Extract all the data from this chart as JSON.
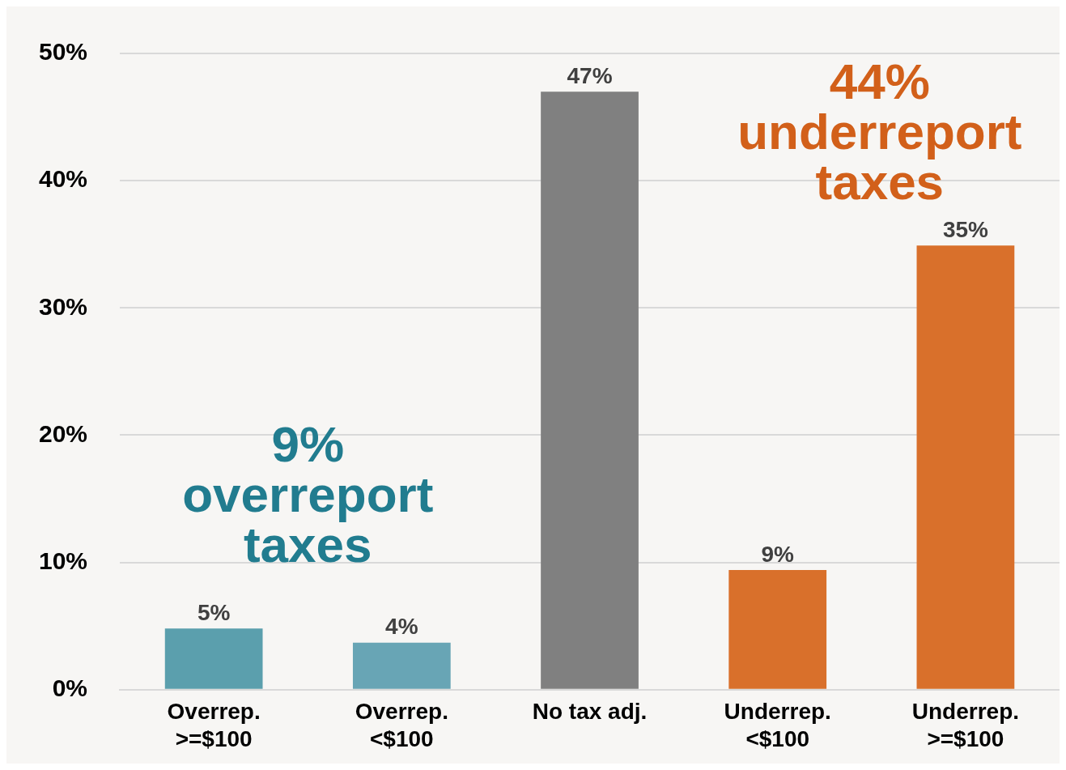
{
  "chart_data": {
    "type": "bar",
    "categories": [
      "Overrep.\n>=$100",
      "Overrep.\n<$100",
      "No tax adj.",
      "Underrep.\n<$100",
      "Underrep.\n>=$100"
    ],
    "values": [
      4.8,
      3.7,
      47.0,
      9.4,
      34.9
    ],
    "value_labels": [
      "5%",
      "4%",
      "47%",
      "9%",
      "35%"
    ],
    "colors": [
      "#5b9fad",
      "#68a5b5",
      "#808080",
      "#d9702b",
      "#d9702b"
    ],
    "ylim": [
      0,
      50
    ],
    "yticks": [
      {
        "value": 0,
        "label": "0%"
      },
      {
        "value": 10,
        "label": "10%"
      },
      {
        "value": 20,
        "label": "20%"
      },
      {
        "value": 30,
        "label": "30%"
      },
      {
        "value": 40,
        "label": "40%"
      },
      {
        "value": 50,
        "label": "50%"
      }
    ],
    "grid": "y",
    "legend": false,
    "annotations": [
      "9%\noverreport\ntaxes",
      "44%\nunderreport\ntaxes"
    ]
  }
}
